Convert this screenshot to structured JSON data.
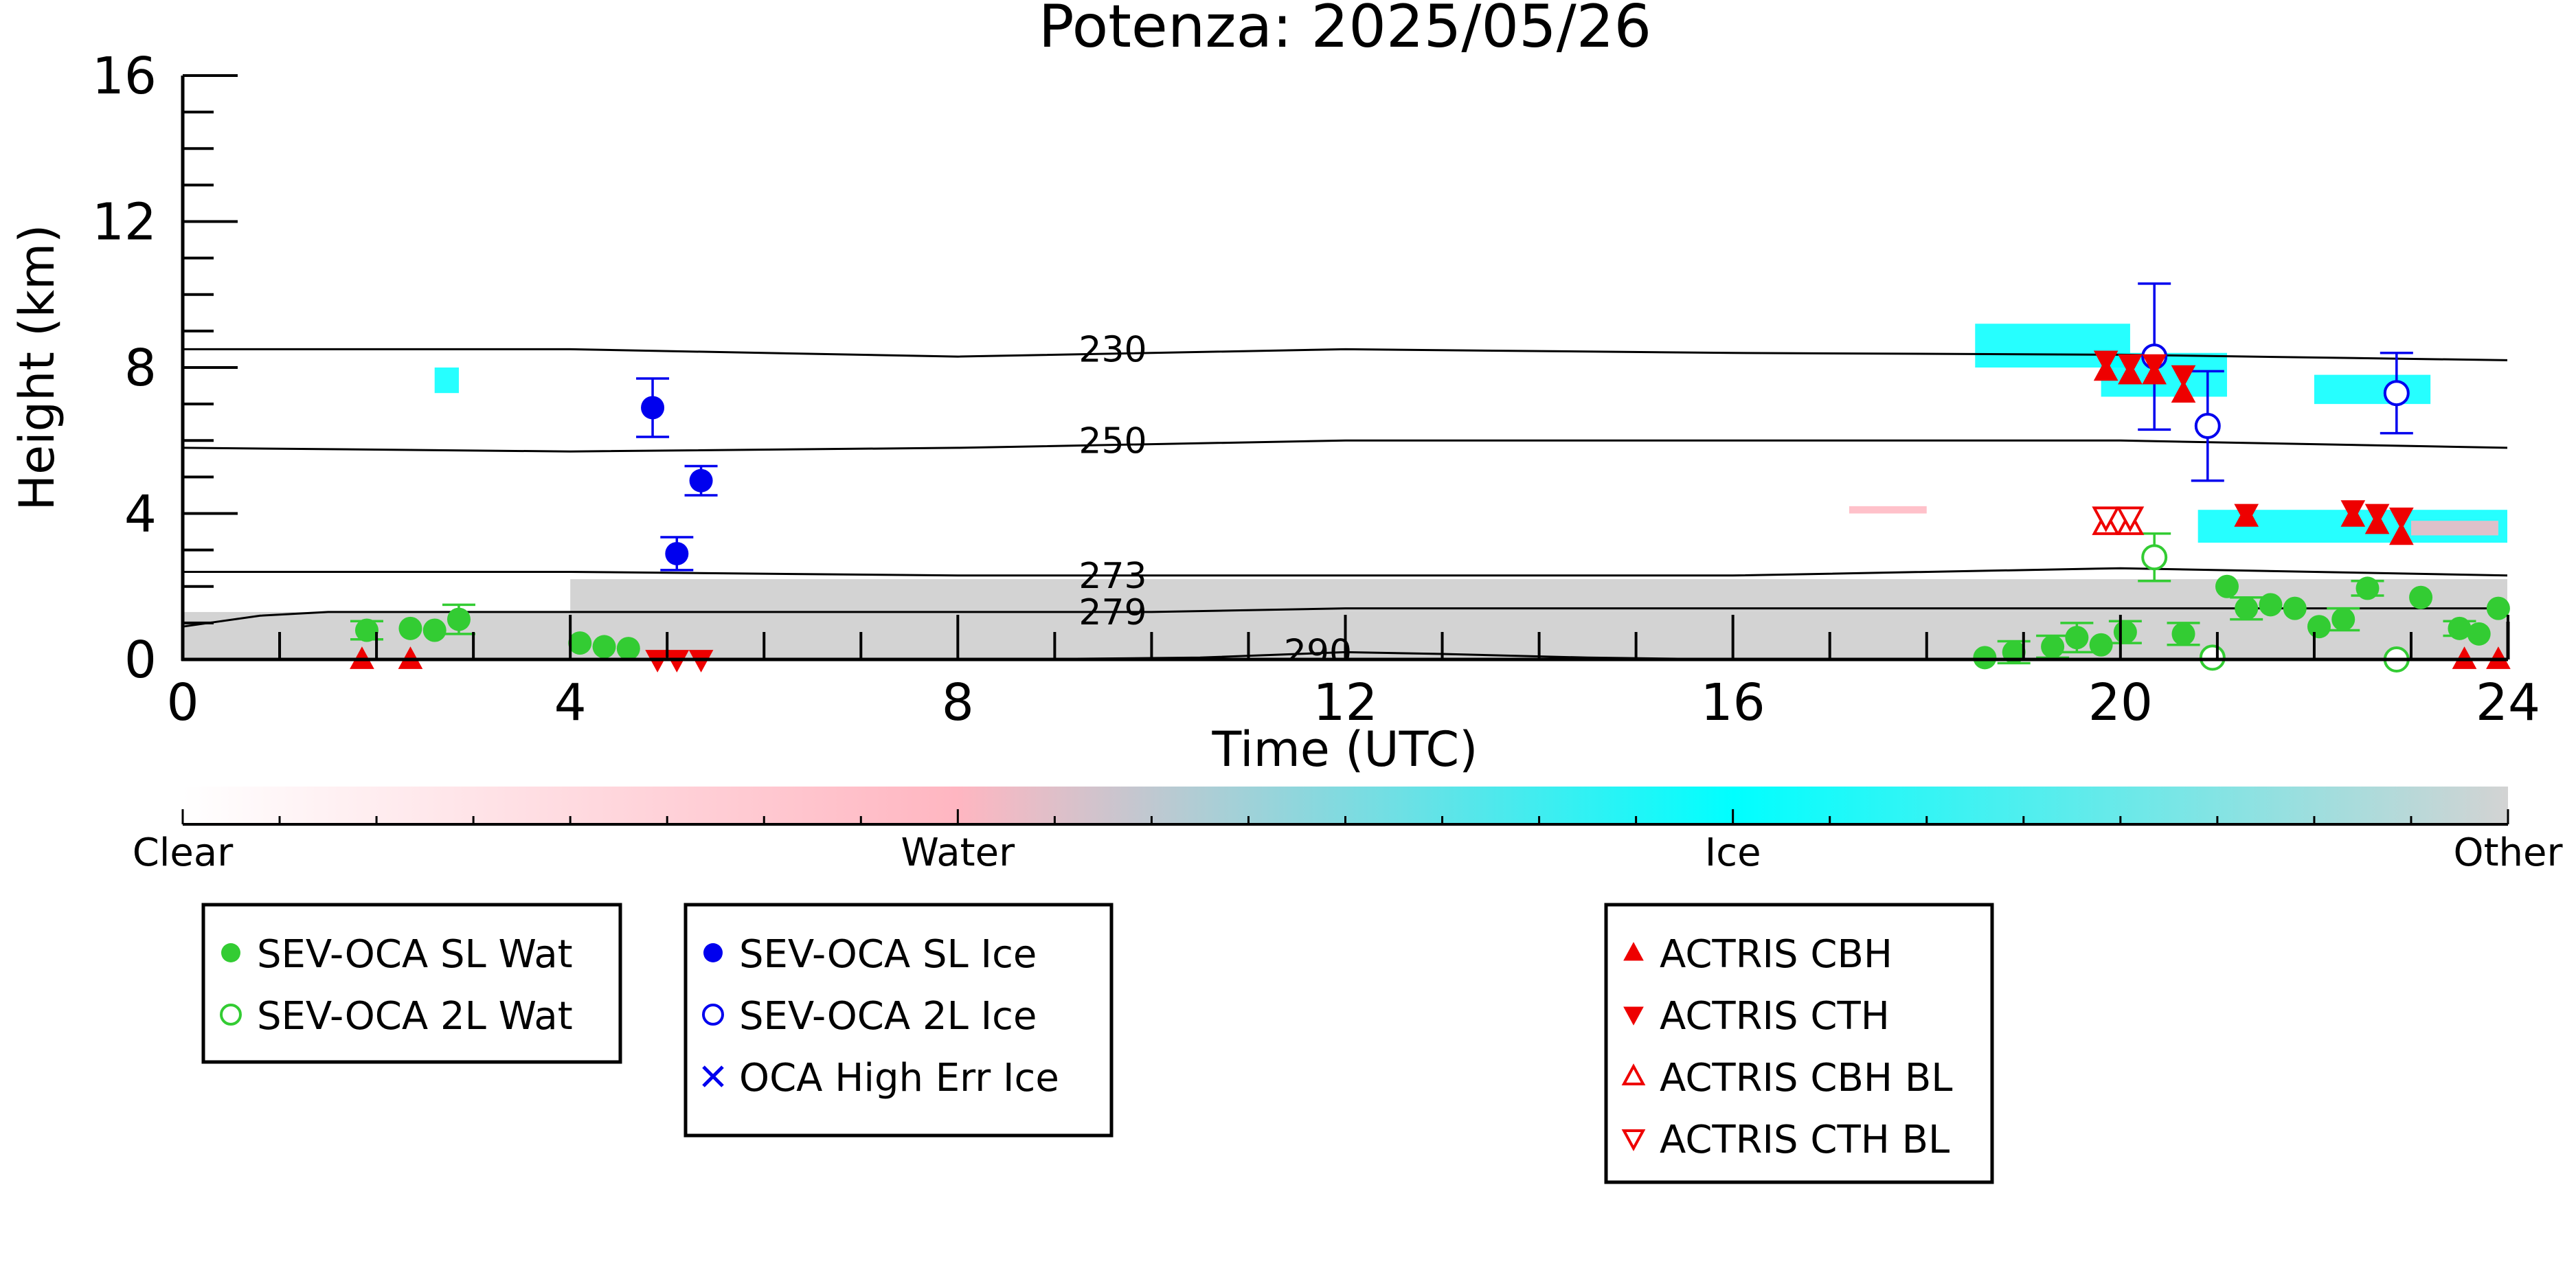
{
  "chart_data": {
    "type": "scatter",
    "title": "Potenza: 2025/05/26",
    "xlabel": "Time (UTC)",
    "ylabel": "Height (km)",
    "xlim": [
      0,
      24
    ],
    "ylim": [
      0,
      16
    ],
    "xticks": [
      0,
      4,
      8,
      12,
      16,
      20,
      24
    ],
    "yticks": [
      0,
      4,
      8,
      12,
      16
    ],
    "grid": false,
    "colors": {
      "sl_wat": "#33cc33",
      "sl_ice": "#0000ee",
      "actris": "#ee0000",
      "cloud_ice": "#00ffff",
      "cloud_water": "#ffb6c1",
      "cloud_other": "#d3d3d3"
    },
    "isotherms": [
      {
        "label": "230",
        "points": [
          [
            0,
            8.5
          ],
          [
            4,
            8.5
          ],
          [
            8,
            8.3
          ],
          [
            12,
            8.5
          ],
          [
            16,
            8.4
          ],
          [
            20,
            8.35
          ],
          [
            24,
            8.2
          ]
        ]
      },
      {
        "label": "250",
        "points": [
          [
            0,
            5.8
          ],
          [
            4,
            5.7
          ],
          [
            8,
            5.8
          ],
          [
            12,
            6.0
          ],
          [
            16,
            6.0
          ],
          [
            20,
            6.0
          ],
          [
            24,
            5.8
          ]
        ]
      },
      {
        "label": "273",
        "points": [
          [
            0,
            2.4
          ],
          [
            4,
            2.4
          ],
          [
            8,
            2.3
          ],
          [
            12,
            2.3
          ],
          [
            16,
            2.3
          ],
          [
            20,
            2.5
          ],
          [
            24,
            2.3
          ]
        ]
      },
      {
        "label": "279",
        "points": [
          [
            0,
            0.9
          ],
          [
            0.8,
            1.2
          ],
          [
            1.5,
            1.3
          ],
          [
            4,
            1.3
          ],
          [
            8,
            1.3
          ],
          [
            10,
            1.3
          ],
          [
            12,
            1.4
          ],
          [
            16,
            1.4
          ],
          [
            20,
            1.4
          ],
          [
            24,
            1.4
          ]
        ]
      },
      {
        "label": "290",
        "points": [
          [
            8.5,
            0
          ],
          [
            10.5,
            0.05
          ],
          [
            12,
            0.2
          ],
          [
            13,
            0.15
          ],
          [
            14.5,
            0.05
          ],
          [
            16,
            0
          ]
        ]
      }
    ],
    "series": [
      {
        "name": "SEV-OCA SL Wat",
        "marker": "filled-circle",
        "points": [
          [
            1.9,
            0.8,
            0.25
          ],
          [
            2.35,
            0.85,
            0
          ],
          [
            2.6,
            0.8,
            0
          ],
          [
            2.85,
            1.1,
            0.4
          ],
          [
            4.1,
            0.45,
            0
          ],
          [
            4.35,
            0.35,
            0
          ],
          [
            4.6,
            0.3,
            0
          ],
          [
            18.6,
            0.05,
            0
          ],
          [
            18.9,
            0.2,
            0.3
          ],
          [
            19.3,
            0.35,
            0.3
          ],
          [
            19.55,
            0.6,
            0.4
          ],
          [
            19.8,
            0.4,
            0
          ],
          [
            20.05,
            0.75,
            0.3
          ],
          [
            20.65,
            0.7,
            0.3
          ],
          [
            21.1,
            2.0,
            0
          ],
          [
            21.3,
            1.4,
            0.3
          ],
          [
            21.55,
            1.5,
            0
          ],
          [
            21.8,
            1.4,
            0
          ],
          [
            22.05,
            0.9,
            0
          ],
          [
            22.3,
            1.1,
            0.3
          ],
          [
            22.55,
            1.95,
            0.2
          ],
          [
            23.1,
            1.7,
            0
          ],
          [
            23.5,
            0.85,
            0.2
          ],
          [
            23.7,
            0.7,
            0
          ],
          [
            23.9,
            1.4,
            0
          ]
        ]
      },
      {
        "name": "SEV-OCA 2L Wat",
        "marker": "open-circle",
        "points": [
          [
            20.35,
            2.8,
            0.65
          ],
          [
            20.95,
            0.05,
            0
          ],
          [
            22.85,
            0.0,
            0
          ]
        ]
      },
      {
        "name": "SEV-OCA SL Ice",
        "marker": "filled-circle",
        "points": [
          [
            4.85,
            6.9,
            0.8
          ],
          [
            5.35,
            4.9,
            0.4
          ],
          [
            5.1,
            2.9,
            0.45
          ]
        ]
      },
      {
        "name": "SEV-OCA 2L Ice",
        "marker": "open-circle",
        "points": [
          [
            20.35,
            8.3,
            2.0
          ],
          [
            20.9,
            6.4,
            1.5
          ],
          [
            22.85,
            7.3,
            1.1
          ]
        ]
      },
      {
        "name": "OCA High Err Ice",
        "marker": "x",
        "points": []
      },
      {
        "name": "ACTRIS CBH",
        "marker": "filled-triangle-up",
        "points": [
          [
            19.85,
            7.9
          ],
          [
            20.1,
            7.8
          ],
          [
            20.35,
            7.8
          ],
          [
            20.65,
            7.3
          ],
          [
            21.3,
            3.9
          ],
          [
            22.4,
            3.9
          ],
          [
            22.65,
            3.7
          ],
          [
            22.9,
            3.4
          ],
          [
            1.85,
            0.0
          ],
          [
            2.35,
            0.0
          ],
          [
            23.55,
            0.0
          ],
          [
            23.9,
            0.0
          ]
        ]
      },
      {
        "name": "ACTRIS CTH",
        "marker": "filled-triangle-down",
        "points": [
          [
            19.85,
            8.2
          ],
          [
            20.1,
            8.1
          ],
          [
            20.35,
            8.1
          ],
          [
            20.65,
            7.8
          ],
          [
            21.3,
            4.0
          ],
          [
            22.4,
            4.1
          ],
          [
            22.65,
            4.0
          ],
          [
            22.9,
            3.9
          ],
          [
            4.9,
            0.0
          ],
          [
            5.1,
            0.0
          ],
          [
            5.35,
            0.0
          ]
        ]
      },
      {
        "name": "ACTRIS CBH BL",
        "marker": "open-triangle-up",
        "points": [
          [
            19.85,
            3.7
          ],
          [
            20.1,
            3.7
          ]
        ]
      },
      {
        "name": "ACTRIS CTH BL",
        "marker": "open-triangle-down",
        "points": [
          [
            19.85,
            3.9
          ],
          [
            20.1,
            3.9
          ]
        ]
      }
    ],
    "cloud_mask": [
      {
        "class": "Ice",
        "x": [
          2.6,
          2.85
        ],
        "y": [
          7.3,
          8.0
        ]
      },
      {
        "class": "Ice",
        "x": [
          18.5,
          20.1
        ],
        "y": [
          8.0,
          9.2
        ]
      },
      {
        "class": "Ice",
        "x": [
          19.8,
          21.1
        ],
        "y": [
          7.2,
          8.4
        ]
      },
      {
        "class": "Ice",
        "x": [
          22.0,
          23.2
        ],
        "y": [
          7.0,
          7.8
        ]
      },
      {
        "class": "Ice",
        "x": [
          20.8,
          24.0
        ],
        "y": [
          3.2,
          4.1
        ]
      },
      {
        "class": "Water",
        "x": [
          17.2,
          18.0
        ],
        "y": [
          4.0,
          4.2
        ]
      },
      {
        "class": "Water",
        "x": [
          23.0,
          23.9
        ],
        "y": [
          3.4,
          3.8
        ]
      },
      {
        "class": "Other",
        "x": [
          0,
          24
        ],
        "y": [
          0,
          1.3
        ]
      },
      {
        "class": "Other",
        "x": [
          4,
          24
        ],
        "y": [
          1.3,
          2.2
        ]
      }
    ],
    "colorbar": {
      "labels": [
        "Clear",
        "Water",
        "Ice",
        "Other"
      ],
      "stops": [
        "#ffffff",
        "#ffb6c1",
        "#00ffff",
        "#d3d3d3"
      ]
    },
    "legends": [
      {
        "entries": [
          "SEV-OCA SL Wat",
          "SEV-OCA 2L Wat"
        ]
      },
      {
        "entries": [
          "SEV-OCA SL Ice",
          "SEV-OCA 2L Ice",
          "OCA High Err Ice"
        ]
      },
      {
        "entries": [
          "ACTRIS CBH",
          "ACTRIS CTH",
          "ACTRIS CBH BL",
          "ACTRIS CTH BL"
        ]
      }
    ]
  }
}
